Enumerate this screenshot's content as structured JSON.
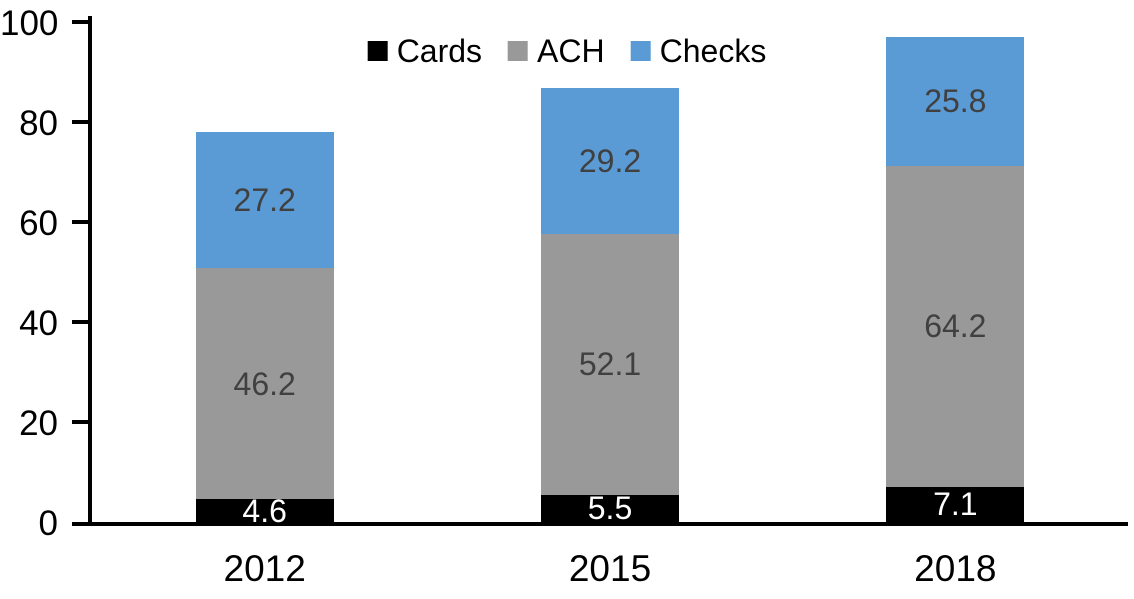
{
  "chart_data": {
    "type": "bar",
    "stacked": true,
    "title": "",
    "categories": [
      "2012",
      "2015",
      "2018"
    ],
    "series": [
      {
        "name": "Cards",
        "values": [
          4.6,
          5.5,
          7.1
        ],
        "color": "#000000",
        "label_color": "#FFFFFF"
      },
      {
        "name": "ACH",
        "values": [
          46.2,
          52.1,
          64.2
        ],
        "color": "#999999",
        "label_color": "#404040"
      },
      {
        "name": "Checks",
        "values": [
          27.2,
          29.2,
          25.8
        ],
        "color": "#5B9BD5",
        "label_color": "#404040"
      }
    ],
    "yticks": [
      0,
      20,
      40,
      60,
      80,
      100
    ],
    "ylim": [
      0,
      100
    ],
    "xlabel": "",
    "ylabel": "",
    "grid": false,
    "legend_position": "top",
    "axis_color": "#000000"
  }
}
